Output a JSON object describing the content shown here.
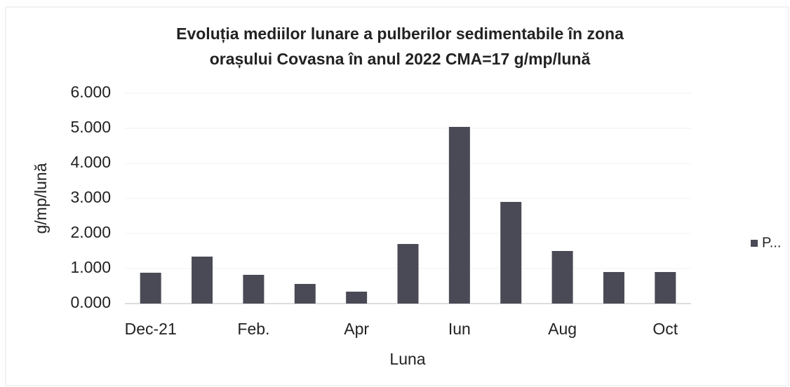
{
  "chart_data": {
    "type": "bar",
    "title": [
      "Evoluția mediilor lunare a pulberilor sedimentabile în zona",
      "orașului Covasna în anul 2022    CMA=17 g/mp/lună"
    ],
    "y_label": "g/mp/lună",
    "x_label": "Luna",
    "categories": [
      "Dec-21",
      null,
      "Feb.",
      null,
      "Apr",
      null,
      "Iun",
      null,
      "Aug",
      null,
      "Oct"
    ],
    "series": [
      {
        "name": "P...",
        "color": "#4a4a56",
        "values": [
          0.88,
          1.34,
          0.82,
          0.56,
          0.34,
          1.7,
          5.04,
          2.9,
          1.5,
          0.9,
          0.9
        ]
      }
    ],
    "ylim": [
      0,
      6
    ],
    "yticks": [
      {
        "value": 0,
        "label": "0.000"
      },
      {
        "value": 1,
        "label": "1.000"
      },
      {
        "value": 2,
        "label": "2.000"
      },
      {
        "value": 3,
        "label": "3.000"
      },
      {
        "value": 4,
        "label": "4.000"
      },
      {
        "value": 5,
        "label": "5.000"
      },
      {
        "value": 6,
        "label": "6.000"
      }
    ],
    "grid": true,
    "legend": "right"
  }
}
